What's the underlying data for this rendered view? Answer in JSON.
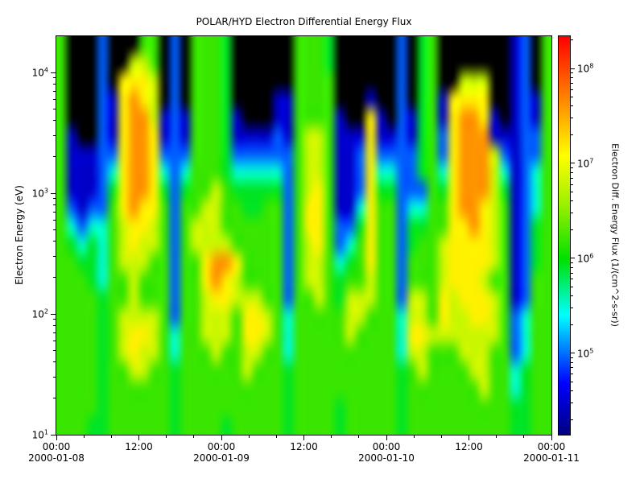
{
  "title": "POLAR/HYD  Electron Differential Energy Flux",
  "y_axis": {
    "label": "Electron Energy (eV)",
    "major_tick_exponents": [
      4,
      3,
      2,
      1
    ],
    "range_log10": [
      1.0,
      4.301
    ]
  },
  "x_axis": {
    "hours_span": 72,
    "minor_interval_hours": 4,
    "major_ticks": [
      {
        "hour": 0,
        "time": "00:00",
        "date": "2000-01-08"
      },
      {
        "hour": 12,
        "time": "12:00",
        "date": ""
      },
      {
        "hour": 24,
        "time": "00:00",
        "date": "2000-01-09"
      },
      {
        "hour": 36,
        "time": "12:00",
        "date": ""
      },
      {
        "hour": 48,
        "time": "00:00",
        "date": "2000-01-10"
      },
      {
        "hour": 60,
        "time": "12:00",
        "date": ""
      },
      {
        "hour": 72,
        "time": "00:00",
        "date": "2000-01-11"
      }
    ]
  },
  "colorbar": {
    "label": "Electron Diff. Energy Flux (1/(cm^2-s-sr))",
    "major_tick_exponents": [
      8,
      7,
      6,
      5
    ],
    "range_log10": [
      4.14,
      8.34
    ]
  },
  "chart_data": {
    "type": "heatmap",
    "title": "POLAR/HYD  Electron Differential Energy Flux",
    "ylabel": "Electron Energy (eV)",
    "y_scale": "log",
    "y_range_ev": [
      10,
      20000
    ],
    "x_tick_times": [
      "00:00",
      "12:00",
      "00:00",
      "12:00",
      "00:00",
      "12:00",
      "00:00"
    ],
    "x_dates": [
      "2000-01-08",
      "2000-01-09",
      "2000-01-10",
      "2000-01-11"
    ],
    "value_label": "Electron Diff. Energy Flux (1/(cm^2-s-sr))",
    "value_scale": "log",
    "value_range_log10": [
      4.14,
      8.34
    ],
    "grid_cols": 48,
    "grid_rows": 22,
    "col_duration_hours": 1.5,
    "rows_order": "top (20 keV) to bottom (10 eV), log-spaced",
    "level_0_means": "below color scale (rendered black)",
    "level_log10_flux": {
      "1": 4.45,
      "2": 4.95,
      "3": 5.5,
      "4": 5.9,
      "5": 6.2,
      "6": 6.8,
      "7": 7.15,
      "8": 7.6,
      "9": 8.2
    },
    "grid": [
      "500020005502055540000005554000000204500000001205",
      "500020066502055540000005554000000204500000001205",
      "500020777602055540000005555000000204500666001205",
      "500021787602055540000115555000100204517777001215",
      "500021788612155541000115555100710214517887101215",
      "510021788712155541111215665111711214527888111225",
      "511122788722255542222225665112722224527888621225",
      "511123788732355543333325665112733224537888631235",
      "511124788742455654444425675112744222547888641235",
      "521225787752556655445525775113755233557887651235",
      "532335677652566655555525775224755244557787651245",
      "543435676652566665555525675235755245567777651245",
      "554435666552557887555525665345755255567777651245",
      "555435565552557876555525665455655255567776551255",
      "555545565552556776665525565466655266576777651255",
      "555545666652556665776535555566555366576677652355",
      "555545677653556665776535555565555377666666652355",
      "555545676653555655665535555555555366555666552355",
      "555545566554555555655545555555555456555566553455",
      "555545555554555555555545555555555455555556553455",
      "555545555554555555555545555455555455555555554455",
      "555445555554555545555545555455555455555555554455"
    ],
    "colormap_stops": [
      [
        0.0,
        "#000080"
      ],
      [
        0.13,
        "#0000ff"
      ],
      [
        0.3,
        "#00ffff"
      ],
      [
        0.44,
        "#00e000"
      ],
      [
        0.58,
        "#9ef000"
      ],
      [
        0.7,
        "#ffff00"
      ],
      [
        0.83,
        "#ff9000"
      ],
      [
        1.0,
        "#ff0000"
      ]
    ]
  }
}
